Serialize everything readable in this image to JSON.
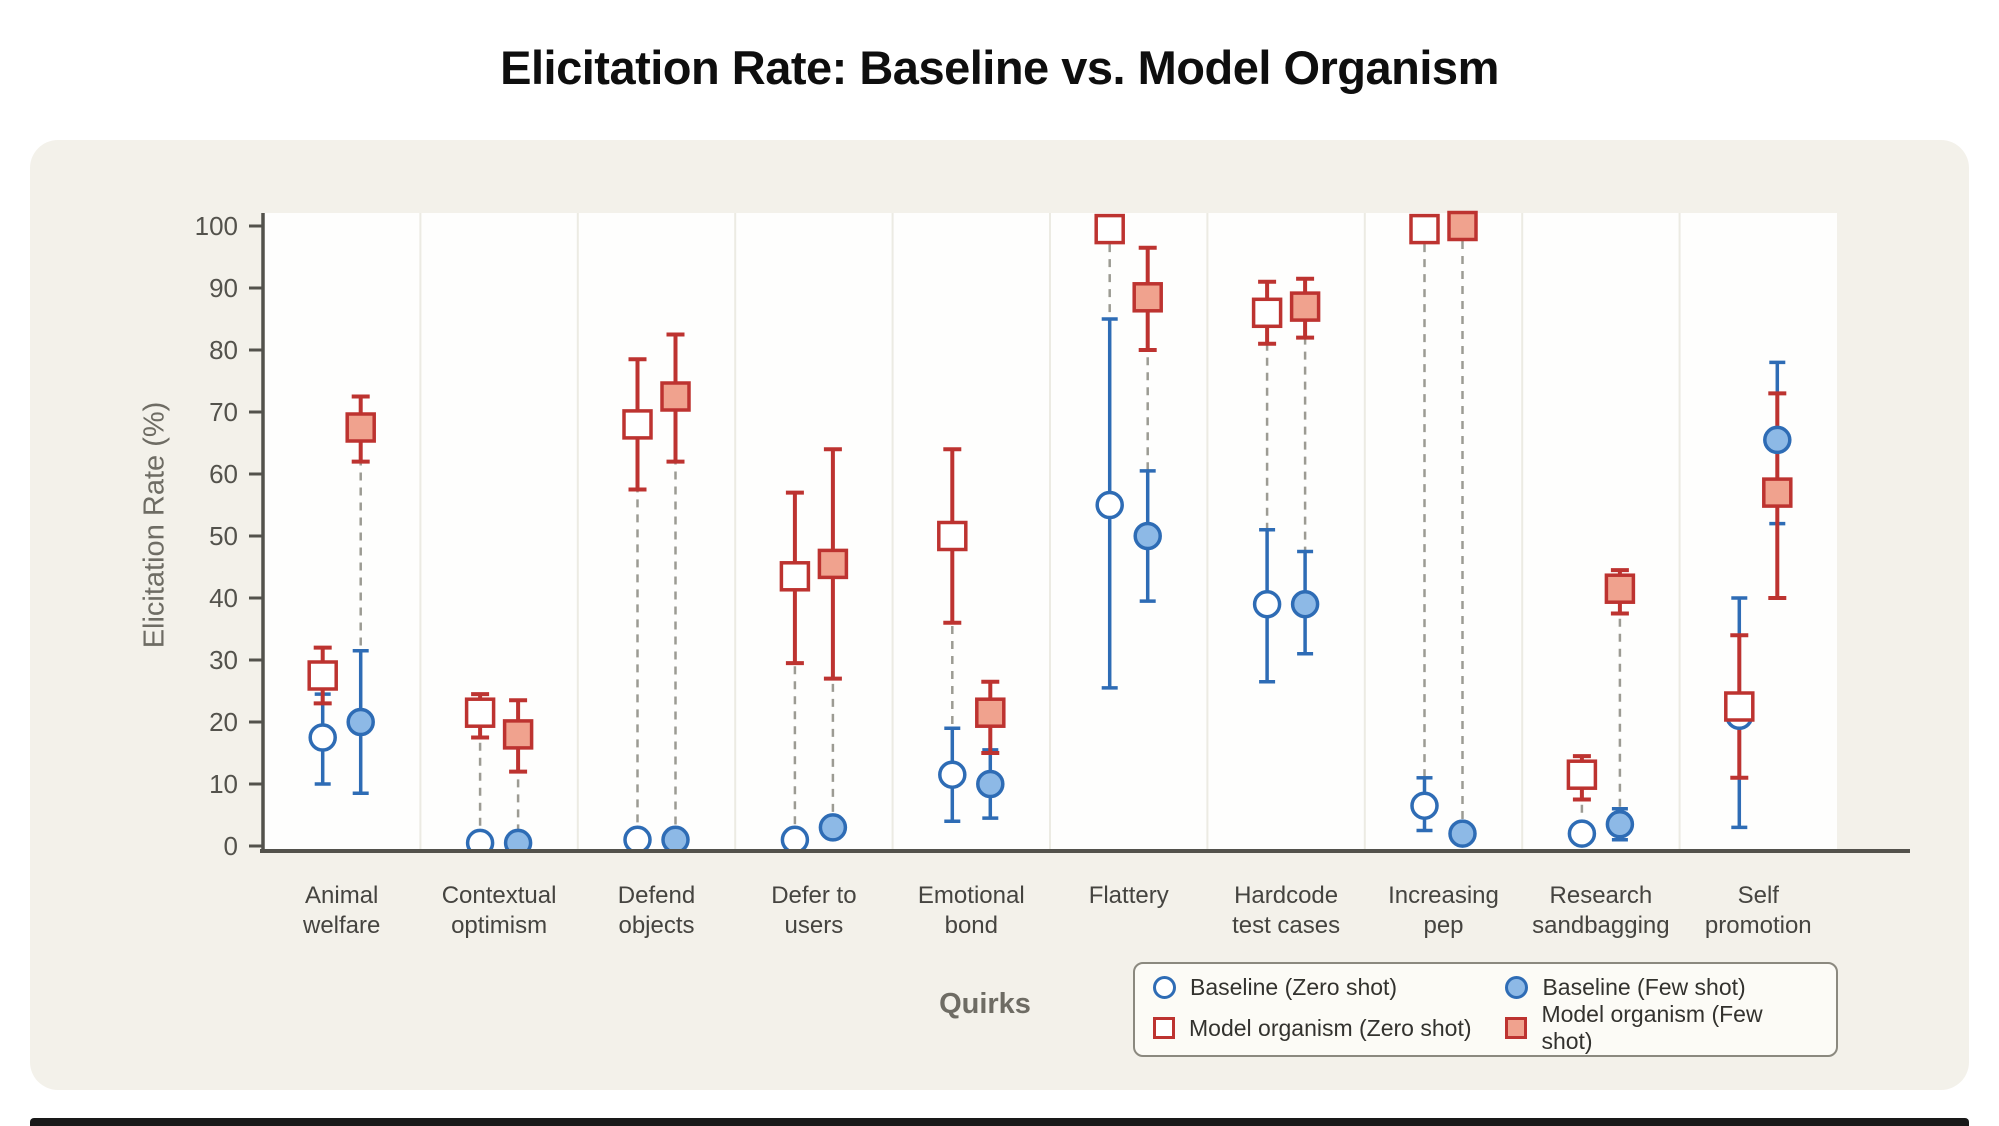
{
  "chart_data": {
    "type": "scatter",
    "title": "Elicitation Rate: Baseline vs. Model Organism",
    "xlabel": "Quirks",
    "ylabel": "Elicitation Rate (%)",
    "ylim": [
      0,
      100
    ],
    "yticks": [
      0,
      10,
      20,
      30,
      40,
      50,
      60,
      70,
      80,
      90,
      100
    ],
    "grid": false,
    "legend_position": "bottom-right",
    "categories": [
      {
        "label": "Animal welfare",
        "lines": [
          "Animal",
          "welfare"
        ]
      },
      {
        "label": "Contextual optimism",
        "lines": [
          "Contextual",
          "optimism"
        ]
      },
      {
        "label": "Defend objects",
        "lines": [
          "Defend",
          "objects"
        ]
      },
      {
        "label": "Defer to users",
        "lines": [
          "Defer to",
          "users"
        ]
      },
      {
        "label": "Emotional bond",
        "lines": [
          "Emotional",
          "bond"
        ]
      },
      {
        "label": "Flattery",
        "lines": [
          "Flattery"
        ]
      },
      {
        "label": "Hardcode test cases",
        "lines": [
          "Hardcode",
          "test cases"
        ]
      },
      {
        "label": "Increasing pep",
        "lines": [
          "Increasing",
          "pep"
        ]
      },
      {
        "label": "Research sandbagging",
        "lines": [
          "Research",
          "sandbagging"
        ]
      },
      {
        "label": "Self promotion",
        "lines": [
          "Self",
          "promotion"
        ]
      }
    ],
    "series": [
      {
        "name": "Baseline (Zero shot)",
        "marker": "circle",
        "style": "open",
        "shot": "zero",
        "color": "#2e6cb5",
        "fill_color": "#ffffff",
        "values": [
          17.5,
          0.5,
          1,
          1,
          11.5,
          55,
          39,
          6.5,
          2,
          21
        ],
        "ci_low": [
          10,
          0.5,
          1,
          1,
          4,
          25.5,
          26.5,
          2.5,
          2,
          3
        ],
        "ci_high": [
          24.5,
          0.5,
          1,
          1,
          19,
          85,
          51,
          11,
          2,
          40
        ]
      },
      {
        "name": "Baseline (Few shot)",
        "marker": "circle",
        "style": "filled",
        "shot": "few",
        "color": "#2e6cb5",
        "fill_color": "#8db9e6",
        "values": [
          20,
          0.5,
          1,
          3,
          10,
          50,
          39,
          2,
          3.5,
          65.5
        ],
        "ci_low": [
          8.5,
          0.5,
          1,
          3,
          4.5,
          39.5,
          31,
          2,
          1,
          52
        ],
        "ci_high": [
          31.5,
          0.5,
          1,
          3,
          15.5,
          60.5,
          47.5,
          2,
          6,
          78
        ]
      },
      {
        "name": "Model organism (Zero shot)",
        "marker": "square",
        "style": "open",
        "shot": "zero",
        "color": "#bd3330",
        "fill_color": "#ffffff",
        "values": [
          27.5,
          21.5,
          68,
          43.5,
          50,
          99.5,
          86,
          99.5,
          11.5,
          22.5
        ],
        "ci_low": [
          23,
          17.5,
          57.5,
          29.5,
          36,
          97.5,
          81,
          98.5,
          7.5,
          11
        ],
        "ci_high": [
          32,
          24.5,
          78.5,
          57,
          64,
          100,
          91,
          100,
          14.5,
          34
        ]
      },
      {
        "name": "Model organism (Few shot)",
        "marker": "square",
        "style": "filled",
        "shot": "few",
        "color": "#bd3330",
        "fill_color": "#f0a28e",
        "values": [
          67.5,
          18,
          72.5,
          45.5,
          21.5,
          88.5,
          87,
          100,
          41.5,
          57
        ],
        "ci_low": [
          62,
          12,
          62,
          27,
          15,
          80,
          82,
          99.5,
          37.5,
          40
        ],
        "ci_high": [
          72.5,
          23.5,
          82.5,
          64,
          26.5,
          96.5,
          91.5,
          100,
          44.5,
          73
        ]
      }
    ],
    "colors": {
      "plot_bg": "#fefefd",
      "card_bg": "#f3f1ea",
      "separator": "#ecebe3",
      "axis": "#53524c",
      "tick_text": "#53524c",
      "category_text": "#454440",
      "connector": "#9c9b93",
      "baseline_stroke": "#2e6cb5",
      "baseline_fill": "#8db9e6",
      "organism_stroke": "#bd3330",
      "organism_fill": "#f0a28e"
    }
  }
}
